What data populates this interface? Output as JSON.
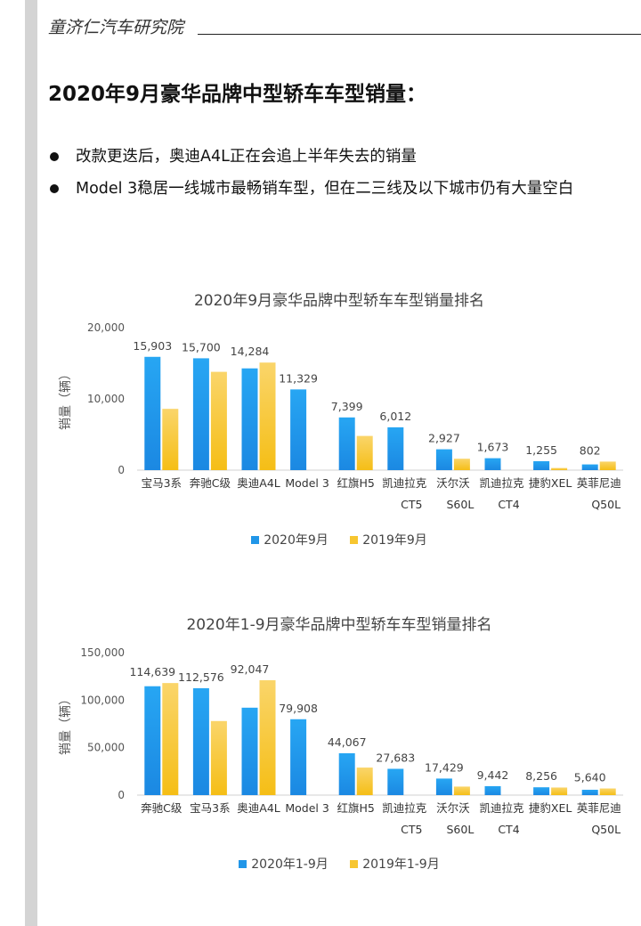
{
  "header": {
    "org_name": "童济仁汽车研究院"
  },
  "page_title": "2020年9月豪华品牌中型轿车车型销量：",
  "bullets": [
    "改款更迭后，奥迪A4L正在会追上半年失去的销量",
    "Model 3稳居一线城市最畅销车型，但在二三线及以下城市仍有大量空白"
  ],
  "colors": {
    "current": "#2196e8",
    "previous": "#f7c630"
  },
  "chart_data": [
    {
      "type": "bar",
      "title": "2020年9月豪华品牌中型轿车车型销量排名",
      "ylabel": "销量（辆）",
      "ylim": [
        0,
        20000
      ],
      "yticks": [
        "0",
        "10,000",
        "20,000"
      ],
      "categories": [
        "宝马3系",
        "奔驰C级",
        "奥迪A4L",
        "Model 3",
        "红旗H5",
        "凯迪拉克\nCT5",
        "沃尔沃\nS60L",
        "凯迪拉克\nCT4",
        "捷豹XEL",
        "英菲尼迪\nQ50L"
      ],
      "series": [
        {
          "name": "2020年9月",
          "values": [
            15903,
            15700,
            14284,
            11329,
            7399,
            6012,
            2927,
            1673,
            1255,
            802
          ]
        },
        {
          "name": "2019年9月",
          "values": [
            8600,
            13800,
            15100,
            null,
            4800,
            null,
            1600,
            null,
            300,
            1200
          ]
        }
      ],
      "data_labels": [
        "15,903",
        "15,700",
        "14,284",
        "11,329",
        "7,399",
        "6,012",
        "2,927",
        "1,673",
        "1,255",
        "802"
      ],
      "grid": false,
      "legend": "bottom"
    },
    {
      "type": "bar",
      "title": "2020年1-9月豪华品牌中型轿车车型销量排名",
      "ylabel": "销量（辆）",
      "ylim": [
        0,
        150000
      ],
      "yticks": [
        "0",
        "50,000",
        "100,000",
        "150,000"
      ],
      "categories": [
        "奔驰C级",
        "宝马3系",
        "奥迪A4L",
        "Model 3",
        "红旗H5",
        "凯迪拉克\nCT5",
        "沃尔沃\nS60L",
        "凯迪拉克\nCT4",
        "捷豹XEL",
        "英菲尼迪\nQ50L"
      ],
      "series": [
        {
          "name": "2020年1-9月",
          "values": [
            114639,
            112576,
            92047,
            79908,
            44067,
            27683,
            17429,
            9442,
            8256,
            5640
          ]
        },
        {
          "name": "2019年1-9月",
          "values": [
            118000,
            78000,
            121000,
            null,
            29000,
            null,
            9000,
            null,
            8000,
            7000
          ]
        }
      ],
      "data_labels": [
        "114,639",
        "112,576",
        "92,047",
        "79,908",
        "44,067",
        "27,683",
        "17,429",
        "9,442",
        "8,256",
        "5,640"
      ],
      "grid": false,
      "legend": "bottom"
    }
  ]
}
